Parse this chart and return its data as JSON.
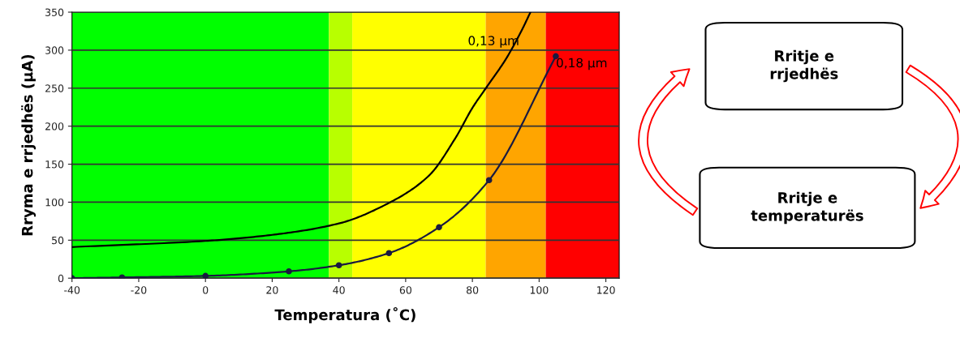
{
  "chart_data": {
    "type": "line",
    "xlabel": "Temperatura (˚C)",
    "ylabel": "Rryma e rrjedhës (μA)",
    "xlim": [
      -40,
      124
    ],
    "xticks": [
      -40,
      -20,
      0,
      20,
      40,
      60,
      80,
      100,
      120
    ],
    "ylim": [
      0,
      350
    ],
    "yticks": [
      0,
      50,
      100,
      150,
      200,
      250,
      300,
      350
    ],
    "grid": "y",
    "series": [
      {
        "name": "0,13 μm",
        "color": "#000000",
        "marker": "none",
        "x": [
          -40,
          0,
          20,
          40,
          55,
          67,
          75,
          80,
          85,
          90,
          95,
          97.4
        ],
        "values": [
          41,
          49,
          57,
          72,
          99,
          135,
          185,
          224,
          256,
          288,
          328,
          350
        ]
      },
      {
        "name": "0,18 μm",
        "color": "#1a1a40",
        "marker": "circle",
        "x": [
          -40,
          -25,
          0,
          25,
          40,
          55,
          70,
          85,
          105
        ],
        "values": [
          0,
          1,
          3,
          9,
          17,
          33,
          67,
          129,
          292
        ]
      }
    ],
    "bands": [
      {
        "axis": "x",
        "from": -40,
        "to": 37,
        "color": "#00ff00"
      },
      {
        "axis": "x",
        "from": 37,
        "to": 44,
        "color": "#b8ff00"
      },
      {
        "axis": "x",
        "from": 44,
        "to": 84,
        "color": "#ffff00"
      },
      {
        "axis": "x",
        "from": 84,
        "to": 102,
        "color": "#ffa500"
      },
      {
        "axis": "x",
        "from": 102,
        "to": 124,
        "color": "#ff0000"
      }
    ],
    "annotations": [
      "Rritje e\nrrjedhës",
      "Rritje e\ntemperaturës"
    ]
  }
}
